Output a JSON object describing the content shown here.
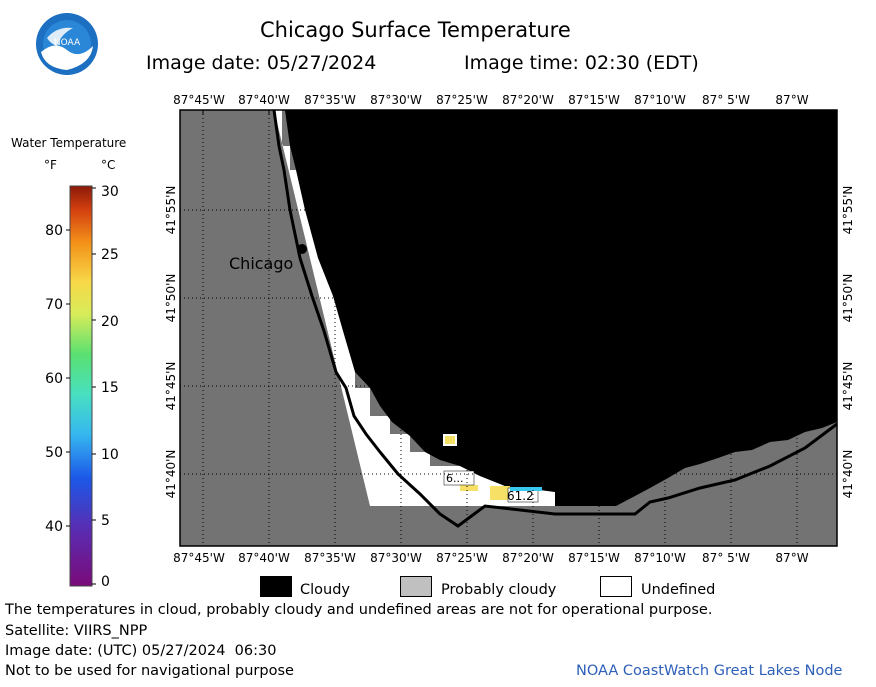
{
  "header": {
    "title": "Chicago Surface Temperature",
    "image_date": "Image date: 05/27/2024",
    "image_time": "Image time: 02:30 (EDT)",
    "logo_text": "NOAA"
  },
  "map": {
    "lon_labels": [
      "87°45'W",
      "87°40'W",
      "87°35'W",
      "87°30'W",
      "87°25'W",
      "87°20'W",
      "87°15'W",
      "87°10'W",
      "87° 5'W",
      "87°W"
    ],
    "lat_labels": [
      "41°55'N",
      "41°50'N",
      "41°45'N",
      "41°40'N"
    ],
    "city_label": "Chicago",
    "temp_labels": [
      "6...",
      "61.2"
    ],
    "colors": {
      "land": "#737373",
      "cloudy": "#000000",
      "probably_cloudy": "#c0c0c0",
      "undefined": "#ffffff"
    }
  },
  "colorbar": {
    "title": "Water Temperature",
    "unit_f": "°F",
    "unit_c": "°C",
    "f_ticks": [
      "80",
      "70",
      "60",
      "50",
      "40"
    ],
    "c_ticks": [
      "30",
      "25",
      "20",
      "15",
      "10",
      "5",
      "0"
    ]
  },
  "legend": {
    "cloudy": "Cloudy",
    "probably_cloudy": "Probably cloudy",
    "undefined": "Undefined"
  },
  "footer": {
    "disclaimer": "The temperatures in cloud, probably cloudy and undefined areas are not for operational purpose.",
    "satellite": "Satellite: VIIRS_NPP",
    "utc_date": "Image date: (UTC) 05/27/2024  06:30",
    "nav_warning": "Not to be used for navigational purpose",
    "credit": "NOAA CoastWatch Great Lakes Node"
  }
}
